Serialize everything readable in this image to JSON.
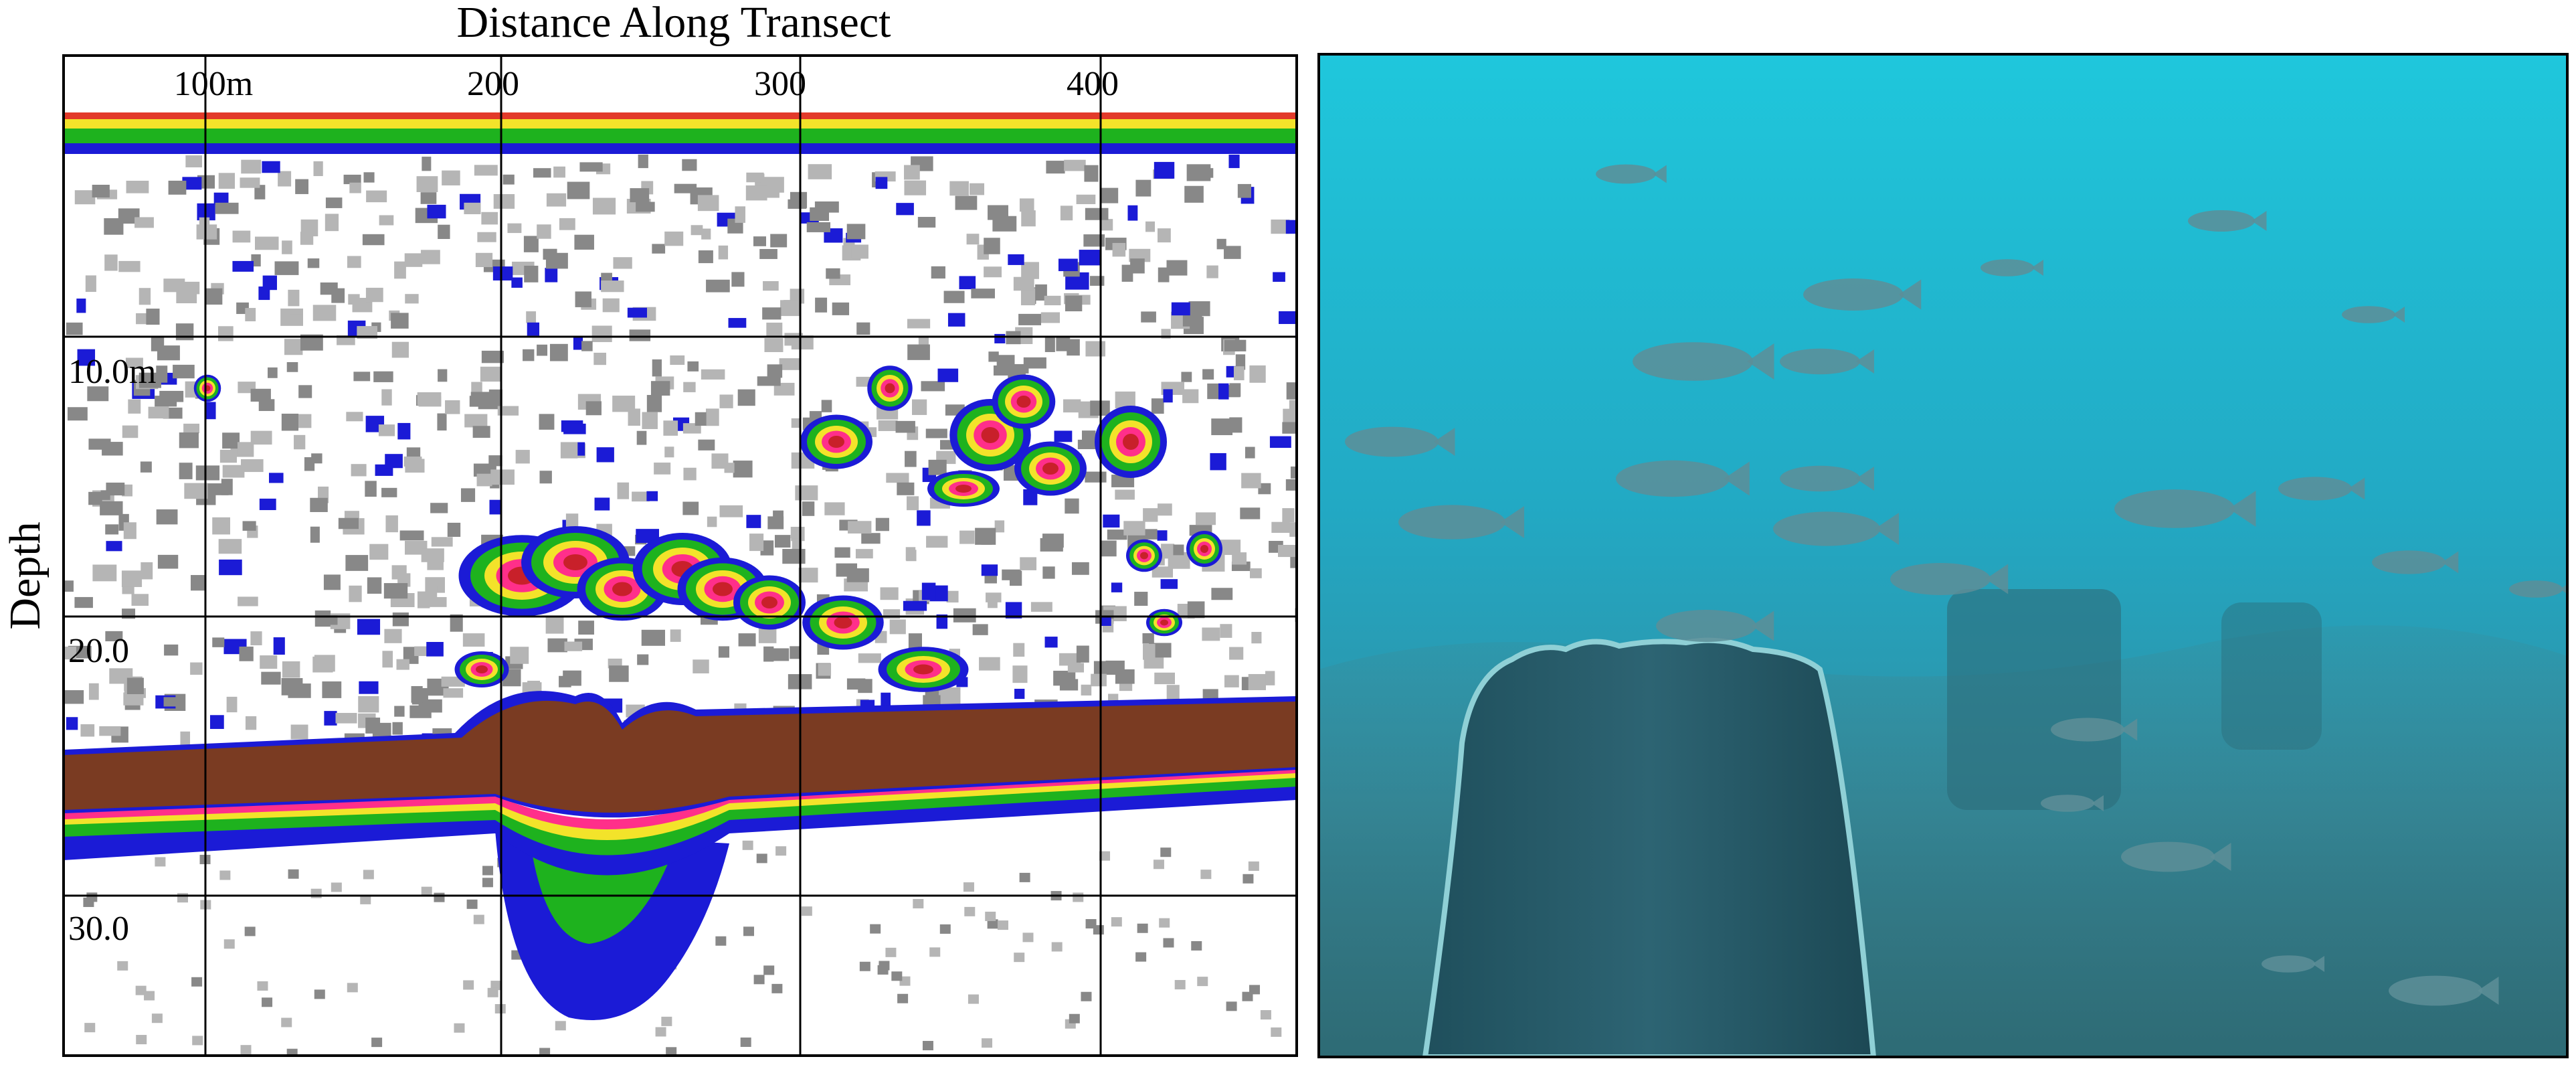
{
  "echogram": {
    "title": "Distance Along Transect",
    "y_label": "Depth",
    "x_ticks": [
      "100m",
      "200",
      "300",
      "400"
    ],
    "y_ticks": [
      "10.0m",
      "20.0",
      "30.0"
    ]
  }
}
